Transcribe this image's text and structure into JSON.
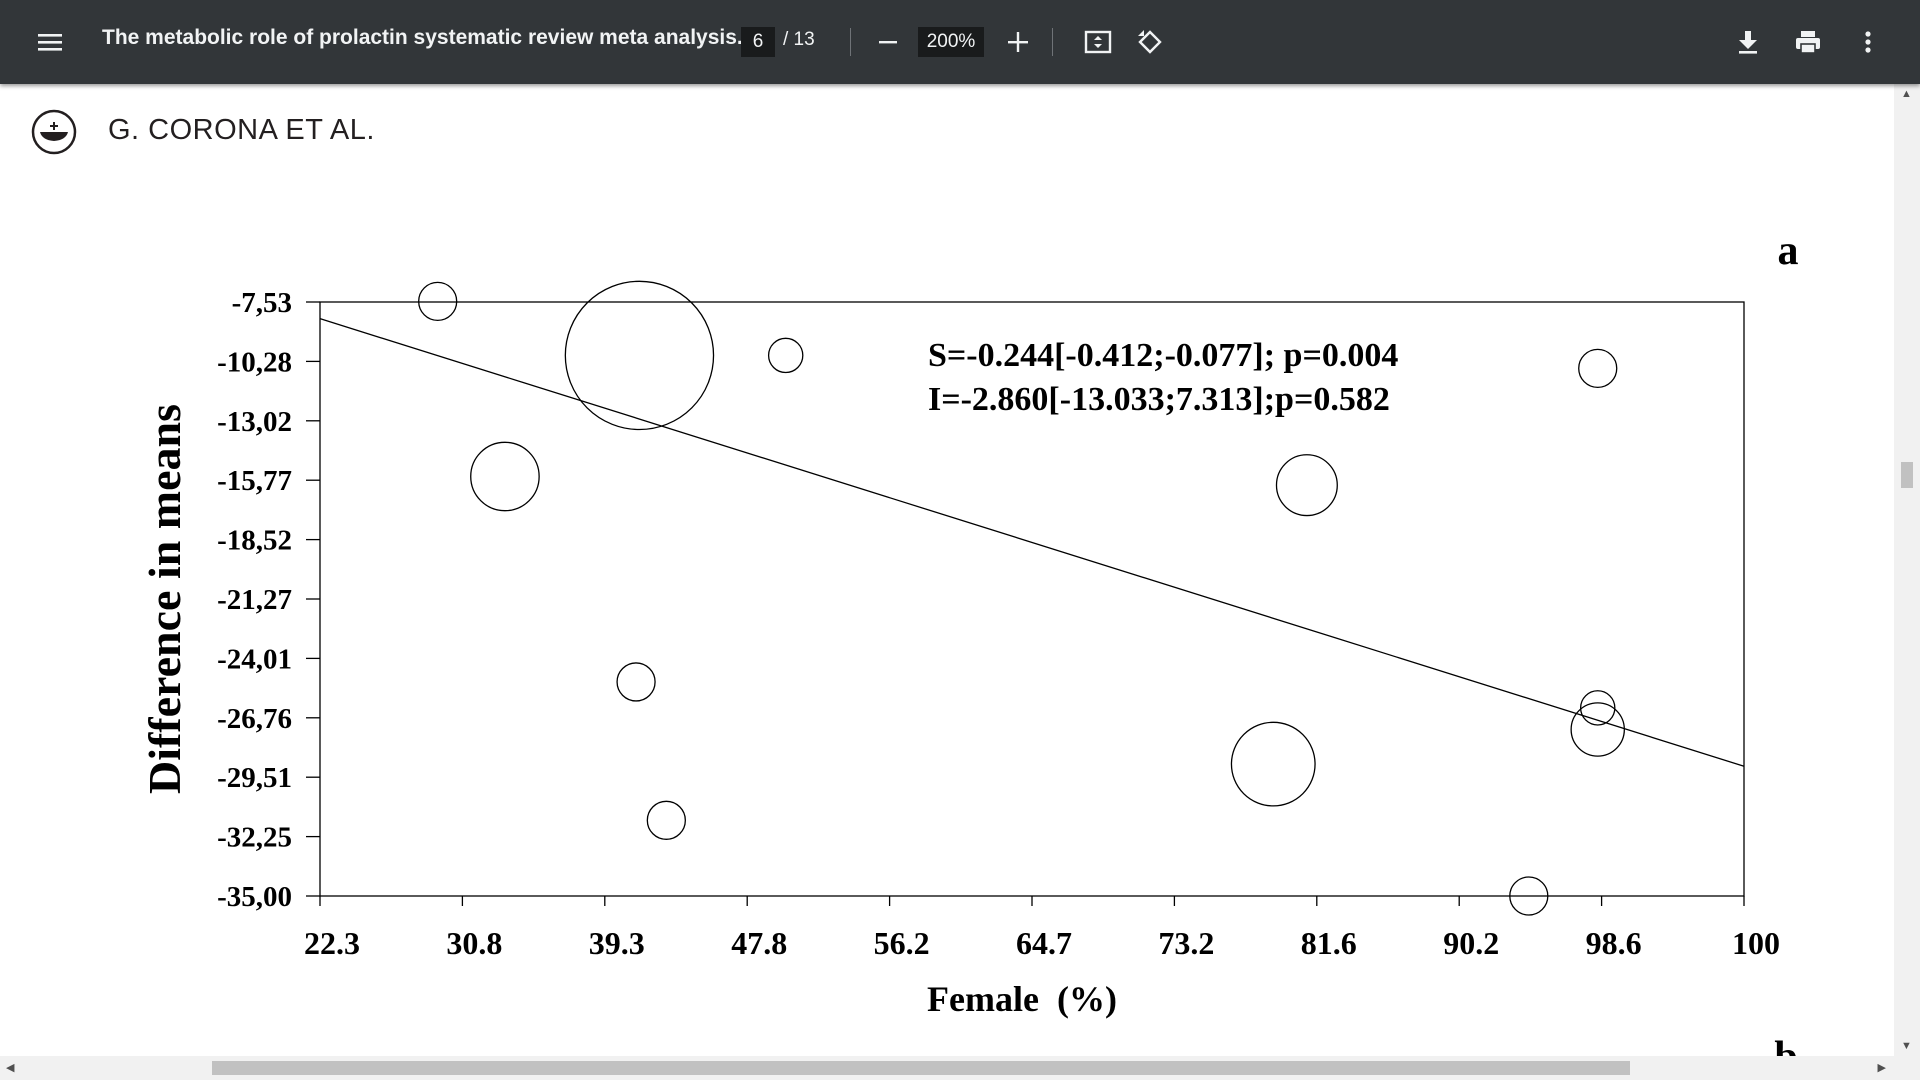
{
  "toolbar": {
    "title": "The metabolic role of prolactin systematic review meta analysis...",
    "page_current": "6",
    "page_total": "/ 13",
    "zoom": "200%"
  },
  "page": {
    "running_head": "G. CORONA ET AL.",
    "panel_label": "a",
    "next_panel_label": "b"
  },
  "chart_data": {
    "type": "scatter",
    "ylabel": "Difference in means",
    "xlabel": "Female  (%)",
    "x_ticks": [
      "22.3",
      "30.8",
      "39.3",
      "47.8",
      "56.2",
      "64.7",
      "73.2",
      "81.6",
      "90.2",
      "98.6",
      "100"
    ],
    "y_ticks": [
      "-7,53",
      "-10,28",
      "-13,02",
      "-15,77",
      "-18,52",
      "-21,27",
      "-24,01",
      "-26,76",
      "-29,51",
      "-32,25",
      "-35,00"
    ],
    "xlim": [
      22.3,
      107.0
    ],
    "ylim": [
      -35.0,
      -7.53
    ],
    "annotations": [
      "S=-0.244[-0.412;-0.077]; p=0.004",
      "I=-2.860[-13.033;7.313];p=0.582"
    ],
    "regression": {
      "x": [
        22.3,
        107.0
      ],
      "y": [
        -8.3,
        -29.0
      ]
    },
    "points": [
      {
        "x": 29.3,
        "y": -7.5,
        "size": 1.0
      },
      {
        "x": 33.3,
        "y": -15.6,
        "size": 1.8
      },
      {
        "x": 41.3,
        "y": -10.0,
        "size": 3.9
      },
      {
        "x": 41.1,
        "y": -25.1,
        "size": 1.0
      },
      {
        "x": 42.9,
        "y": -31.5,
        "size": 1.0
      },
      {
        "x": 50.0,
        "y": -10.0,
        "size": 0.9
      },
      {
        "x": 81.0,
        "y": -16.0,
        "size": 1.6
      },
      {
        "x": 79.0,
        "y": -28.9,
        "size": 2.2
      },
      {
        "x": 94.2,
        "y": -35.0,
        "size": 1.0
      },
      {
        "x": 98.3,
        "y": -10.6,
        "size": 1.0
      },
      {
        "x": 98.3,
        "y": -26.3,
        "size": 0.9
      },
      {
        "x": 98.3,
        "y": -27.3,
        "size": 1.4
      }
    ]
  }
}
